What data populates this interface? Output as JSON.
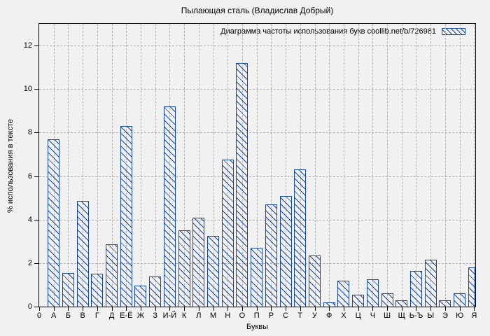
{
  "chart_data": {
    "type": "bar",
    "title": "Пылающая сталь (Владислав Добрый)",
    "legend": [
      "Диаграмма частоты использования букв coollib.net/b/726981"
    ],
    "legend_position": "top-right-inside",
    "xlabel": "Буквы",
    "ylabel": "% использования в тексте",
    "origin_tick_label": "0",
    "categories": [
      "А",
      "Б",
      "В",
      "Г",
      "Д",
      "Е-Ё",
      "Ж",
      "З",
      "И-Й",
      "К",
      "Л",
      "М",
      "Н",
      "О",
      "П",
      "Р",
      "С",
      "Т",
      "У",
      "Ф",
      "Х",
      "Ц",
      "Ч",
      "Ш",
      "Щ",
      "Ь-Ъ",
      "Ы",
      "Э",
      "Ю",
      "Я"
    ],
    "values": [
      7.7,
      1.55,
      4.85,
      1.5,
      2.85,
      8.3,
      0.95,
      1.4,
      9.2,
      3.5,
      4.1,
      3.25,
      6.75,
      11.2,
      2.7,
      4.7,
      5.1,
      6.3,
      2.35,
      0.2,
      1.2,
      0.55,
      1.25,
      0.6,
      0.3,
      1.65,
      2.15,
      0.3,
      0.6,
      1.8
    ],
    "y_ticks": [
      0,
      2,
      4,
      6,
      8,
      10,
      12
    ],
    "ylim": [
      0,
      13
    ],
    "grid": true,
    "bar_style": "diagonal-hatch",
    "colors": {
      "bar": "#17479e",
      "grid": "#b0b0b0",
      "background": "#f1f1f1",
      "text": "#000000",
      "border": "#000000"
    }
  }
}
